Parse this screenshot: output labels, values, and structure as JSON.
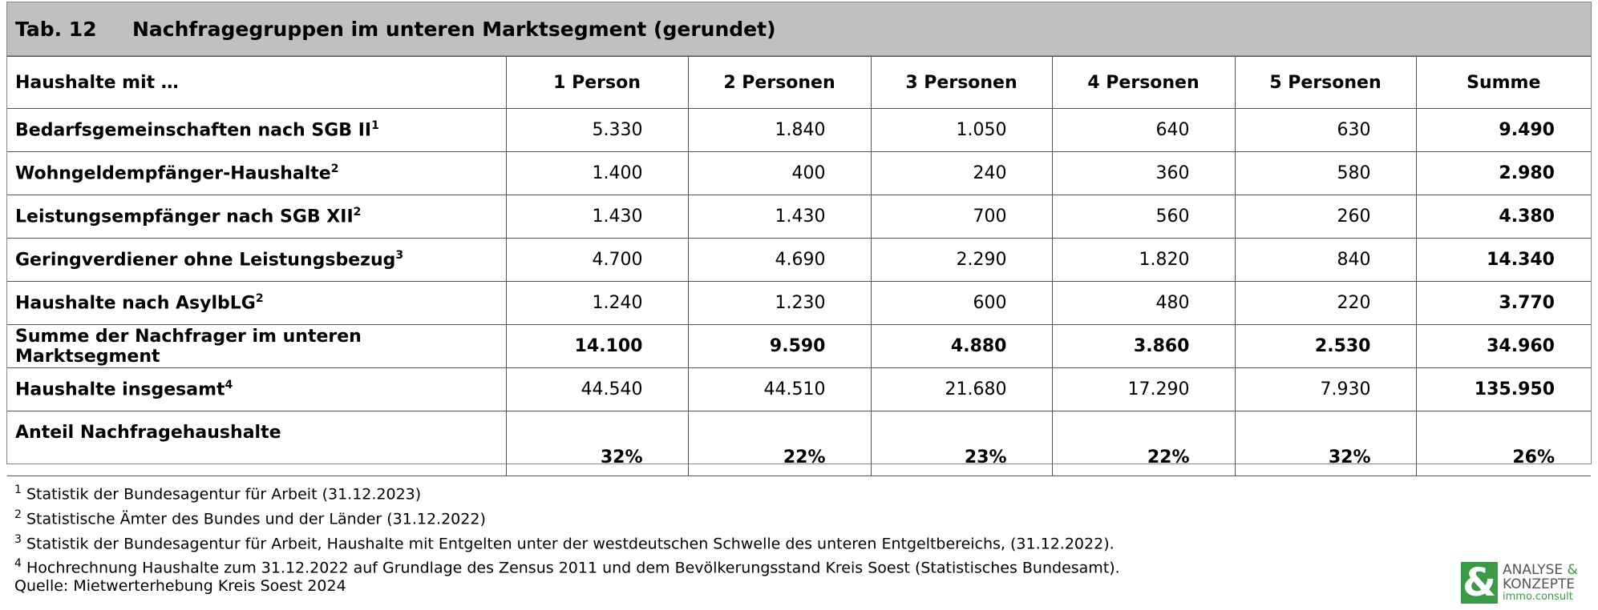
{
  "title": {
    "number": "Tab. 12",
    "text": "Nachfragegruppen im unteren Marktsegment (gerundet)"
  },
  "table": {
    "header": [
      "Haushalte mit …",
      "1 Person",
      "2 Personen",
      "3 Personen",
      "4 Personen",
      "5 Personen",
      "Summe"
    ],
    "rows": [
      {
        "label": "Bedarfsgemeinschaften nach SGB II",
        "note": "1",
        "bold": false,
        "cells": [
          "5.330",
          "1.840",
          "1.050",
          "640",
          "630",
          "9.490"
        ]
      },
      {
        "label": "Wohngeldempfänger-Haushalte",
        "note": "2",
        "bold": false,
        "cells": [
          "1.400",
          "400",
          "240",
          "360",
          "580",
          "2.980"
        ]
      },
      {
        "label": "Leistungsempfänger nach SGB XII",
        "note": "2",
        "bold": false,
        "cells": [
          "1.430",
          "1.430",
          "700",
          "560",
          "260",
          "4.380"
        ]
      },
      {
        "label": "Geringverdiener ohne Leistungsbezug",
        "note": "3",
        "bold": false,
        "cells": [
          "4.700",
          "4.690",
          "2.290",
          "1.820",
          "840",
          "14.340"
        ]
      },
      {
        "label": "Haushalte nach AsylbLG",
        "note": "2",
        "bold": false,
        "cells": [
          "1.240",
          "1.230",
          "600",
          "480",
          "220",
          "3.770"
        ]
      },
      {
        "label": "Summe der Nachfrager im unteren Marktsegment",
        "note": null,
        "bold": true,
        "cells": [
          "14.100",
          "9.590",
          "4.880",
          "3.860",
          "2.530",
          "34.960"
        ]
      },
      {
        "label": "Haushalte insgesamt",
        "note": "4",
        "bold": false,
        "cells": [
          "44.540",
          "44.510",
          "21.680",
          "17.290",
          "7.930",
          "135.950"
        ]
      },
      {
        "label": "Anteil Nachfragehaushalte",
        "note": null,
        "bold": true,
        "cells": [
          "32%",
          "22%",
          "23%",
          "22%",
          "32%",
          "26%"
        ]
      }
    ]
  },
  "footnotes": [
    {
      "note": "1",
      "text": "Statistik der Bundesagentur für Arbeit (31.12.2023)"
    },
    {
      "note": "2",
      "text": "Statistische Ämter des Bundes und der Länder (31.12.2022)"
    },
    {
      "note": "3",
      "text": "Statistik der Bundesagentur für Arbeit, Haushalte mit Entgelten unter der westdeutschen Schwelle des unteren Entgeltbereichs, (31.12.2022)."
    },
    {
      "note": "4",
      "text": "Hochrechnung Haushalte zum 31.12.2022 auf Grundlage des Zensus 2011 und dem Bevölkerungsstand Kreis Soest (Statistisches Bundesamt)."
    }
  ],
  "source": "Quelle: Mietwerterhebung Kreis Soest 2024",
  "logo": {
    "mark": "&",
    "line1": "ANALYSE",
    "amp": "&",
    "line2": "KONZEPTE",
    "line3": "immo.consult"
  }
}
